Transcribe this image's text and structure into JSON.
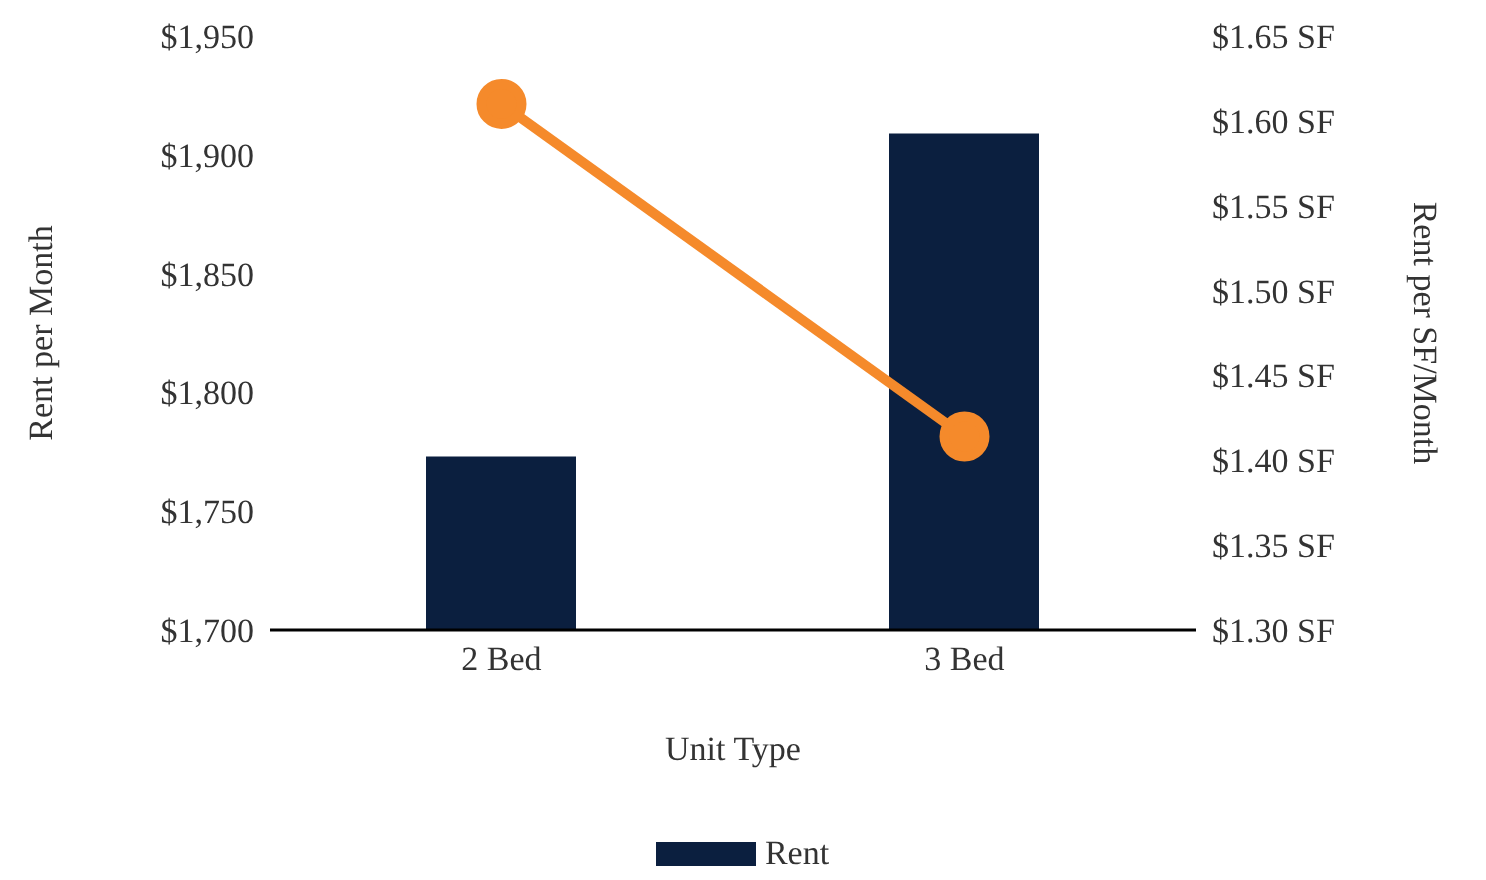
{
  "chart_data": {
    "type": "bar",
    "xlabel": "Unit Type",
    "ylabel": "Rent per Month",
    "y2label": "Rent per SF/Month",
    "categories": [
      "2 Bed",
      "3 Bed"
    ],
    "series": [
      {
        "name": "Rent",
        "color": "#0b1f3f",
        "values": [
          1773,
          1909
        ]
      },
      {
        "type": "line",
        "axis": "y2",
        "color": "#f58a2b",
        "values": [
          1.61,
          1.414
        ]
      }
    ],
    "ylim": [
      1700,
      1950
    ],
    "yticks": [
      {
        "value": 1700,
        "label": "$1,700"
      },
      {
        "value": 1750,
        "label": "$1,750"
      },
      {
        "value": 1800,
        "label": "$1,800"
      },
      {
        "value": 1850,
        "label": "$1,850"
      },
      {
        "value": 1900,
        "label": "$1,900"
      },
      {
        "value": 1950,
        "label": "$1,950"
      }
    ],
    "y2lim": [
      1.3,
      1.65
    ],
    "y2ticks": [
      {
        "value": 1.3,
        "label": "$1.30 SF"
      },
      {
        "value": 1.35,
        "label": "$1.35 SF"
      },
      {
        "value": 1.4,
        "label": "$1.40 SF"
      },
      {
        "value": 1.45,
        "label": "$1.45 SF"
      },
      {
        "value": 1.5,
        "label": "$1.50 SF"
      },
      {
        "value": 1.55,
        "label": "$1.55 SF"
      },
      {
        "value": 1.6,
        "label": "$1.60 SF"
      },
      {
        "value": 1.65,
        "label": "$1.65 SF"
      }
    ],
    "marker": "circle",
    "grid": false,
    "legend": "bottom"
  }
}
